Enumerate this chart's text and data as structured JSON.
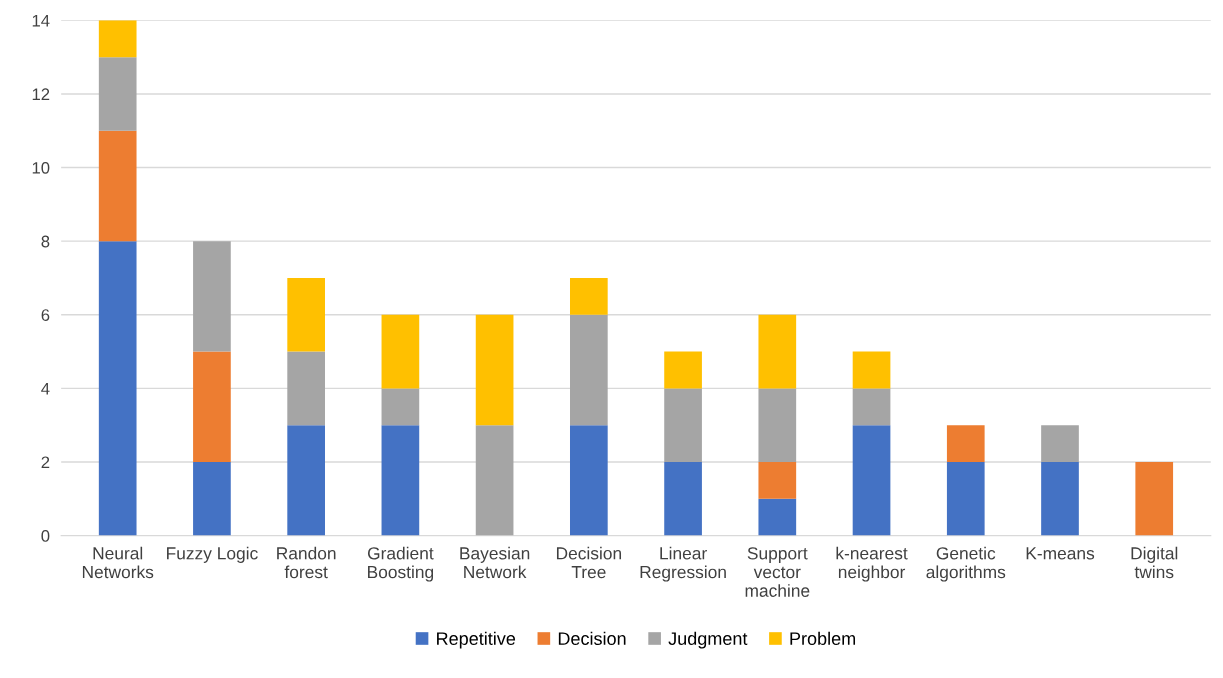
{
  "chart_data": {
    "type": "bar",
    "stacked": true,
    "categories": [
      "Neural\nNetworks",
      "Fuzzy Logic",
      "Randon\nforest",
      "Gradient\nBoosting",
      "Bayesian\nNetwork",
      "Decision\nTree",
      "Linear\nRegression",
      "Support\nvector\nmachine",
      "k-nearest\nneighbor",
      "Genetic\nalgorithms",
      "K-means",
      "Digital\ntwins"
    ],
    "series": [
      {
        "name": "Repetitive",
        "color": "#4472c4",
        "values": [
          8,
          2,
          3,
          3,
          0,
          3,
          2,
          1,
          3,
          2,
          2,
          0
        ]
      },
      {
        "name": "Decision",
        "color": "#ed7d31",
        "values": [
          3,
          3,
          0,
          0,
          0,
          0,
          0,
          1,
          0,
          1,
          0,
          2
        ]
      },
      {
        "name": "Judgment",
        "color": "#a5a5a5",
        "values": [
          2,
          3,
          2,
          1,
          3,
          3,
          2,
          2,
          1,
          0,
          1,
          0
        ]
      },
      {
        "name": "Problem",
        "color": "#ffc000",
        "values": [
          1,
          0,
          2,
          2,
          3,
          1,
          1,
          2,
          1,
          0,
          0,
          0
        ]
      }
    ],
    "ylim": [
      0,
      14
    ],
    "yticks": [
      0,
      2,
      4,
      6,
      8,
      10,
      12,
      14
    ],
    "grid": "y",
    "legend": "bottom"
  }
}
